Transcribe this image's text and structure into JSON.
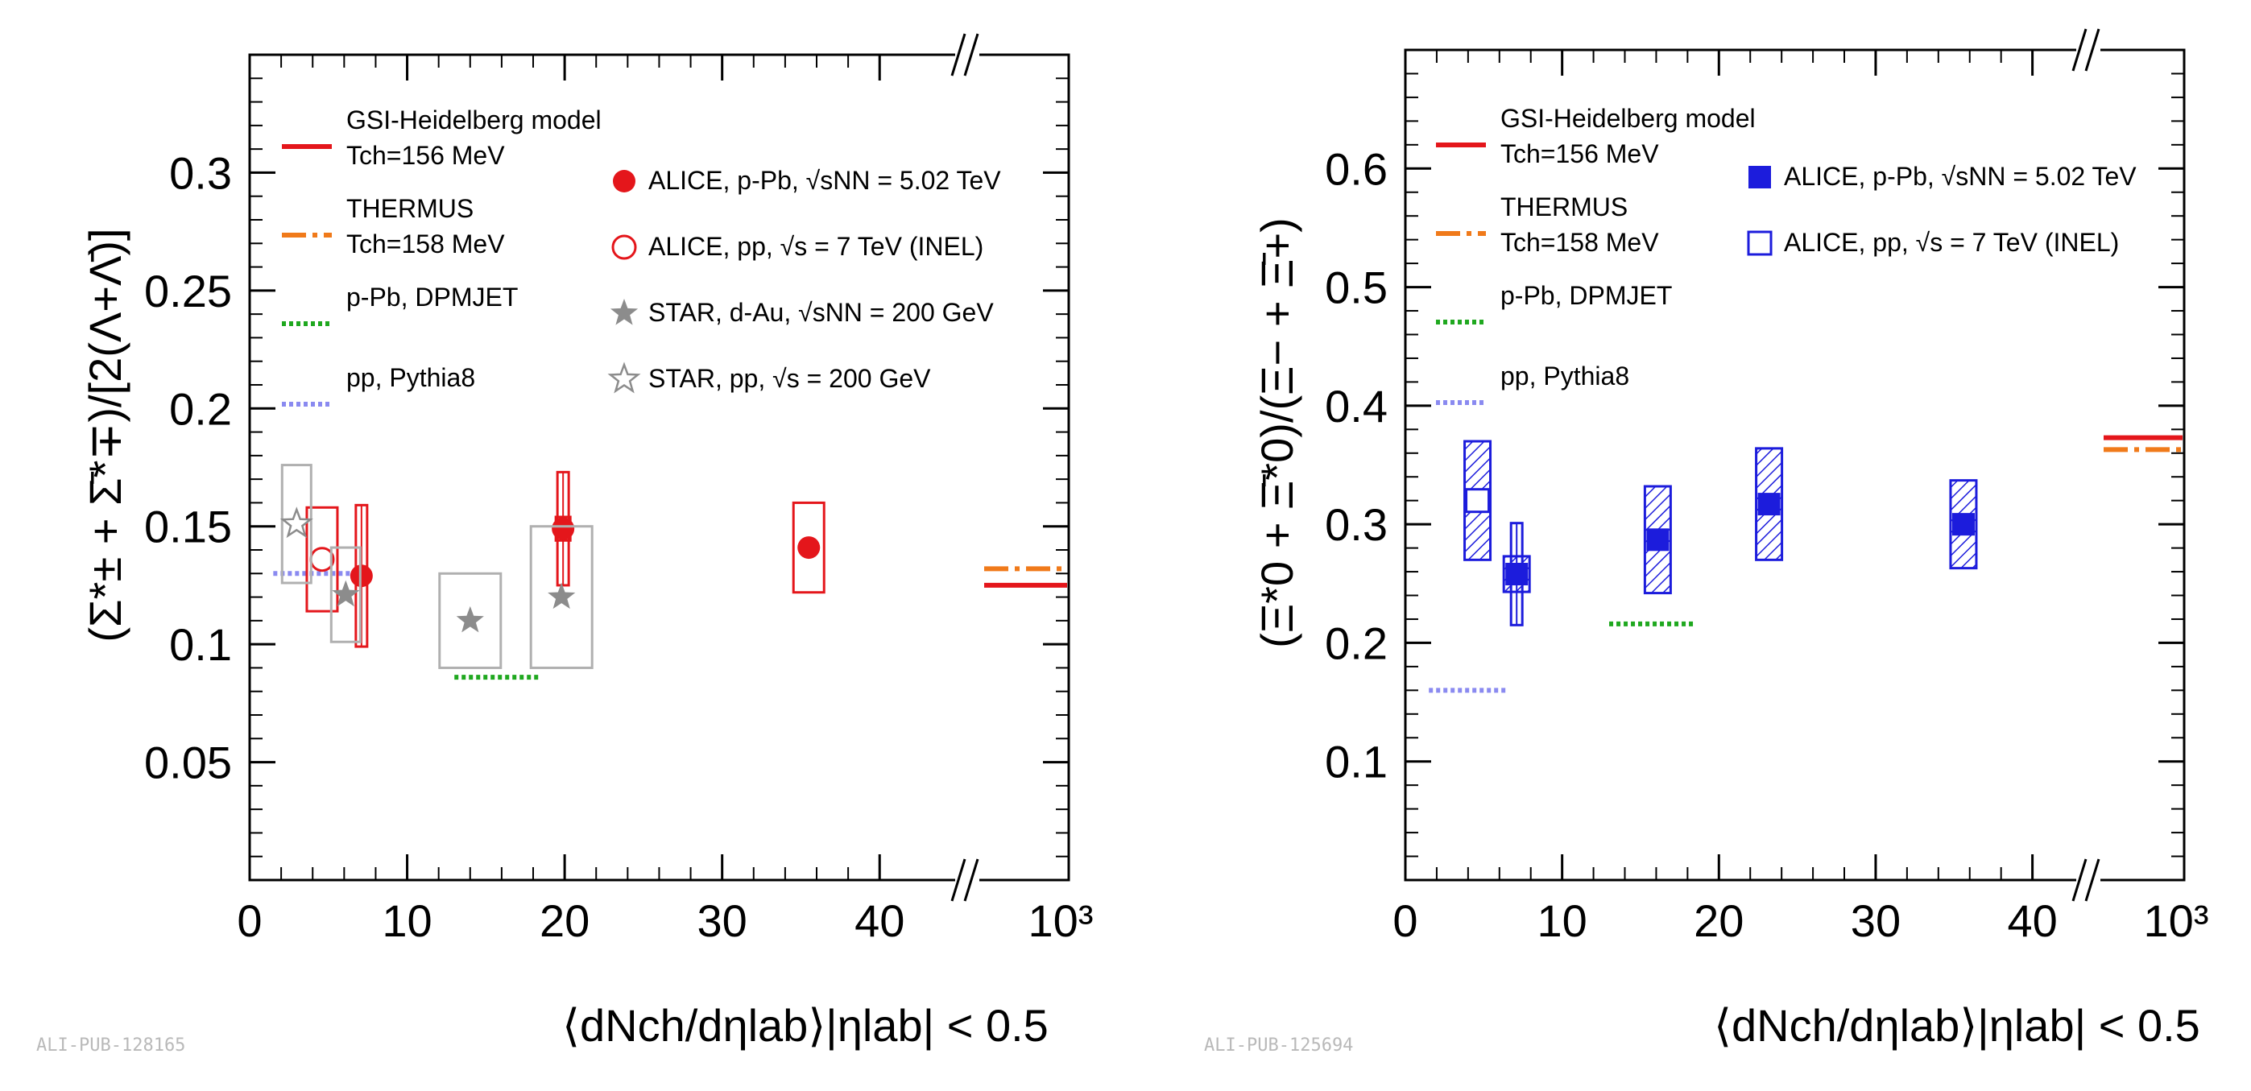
{
  "chart_data": [
    {
      "type": "scatter",
      "title": "",
      "ylabel": "(Σ*± + Σ̄*∓)/[2(Λ+Λ̄)]",
      "xlabel": "⟨dNch/dηlab⟩|ηlab| < 0.5",
      "xlim": [
        0,
        45
      ],
      "ylim": [
        0,
        0.35
      ],
      "xticks": [
        0,
        10,
        20,
        30,
        40
      ],
      "xtick_labels": [
        "0",
        "10",
        "20",
        "30",
        "40"
      ],
      "x_break_label": "10³",
      "yticks": [
        0.05,
        0.1,
        0.15,
        0.2,
        0.25,
        0.3
      ],
      "ytick_labels": [
        "0.05",
        "0.1",
        "0.15",
        "0.2",
        "0.25",
        "0.3"
      ],
      "watermark": "ALI-PUB-128165",
      "legend_models": [
        {
          "label": "GSI-Heidelberg model",
          "sub": "Tch=156 MeV",
          "color": "#e4161b",
          "style": "solid"
        },
        {
          "label": "THERMUS",
          "sub": "Tch=158 MeV",
          "color": "#f07a1a",
          "style": "dashdot"
        },
        {
          "label": "p-Pb, DPMJET",
          "sub": "",
          "color": "#1fa81f",
          "style": "dotted"
        },
        {
          "label": "pp, Pythia8",
          "sub": "",
          "color": "#8a8af0",
          "style": "dotted"
        }
      ],
      "legend_data": [
        {
          "label": "ALICE, p-Pb, √sNN = 5.02 TeV",
          "marker": "circle-filled",
          "color": "#e4161b"
        },
        {
          "label": "ALICE, pp, √s = 7 TeV (INEL)",
          "marker": "circle-open",
          "color": "#e4161b"
        },
        {
          "label": "STAR, d-Au, √sNN = 200 GeV",
          "marker": "star-filled",
          "color": "#8c8c8c"
        },
        {
          "label": "STAR, pp, √s = 200 GeV",
          "marker": "star-open",
          "color": "#8c8c8c"
        }
      ],
      "series": [
        {
          "name": "ALICE, p-Pb, √sNN = 5.02 TeV",
          "marker": "circle-filled",
          "color": "#e4161b",
          "points": [
            {
              "x": 7.1,
              "y": 0.129,
              "stat": 0.03,
              "sys": 0.0
            },
            {
              "x": 19.9,
              "y": 0.149,
              "stat": 0.024,
              "sys": 0.005
            },
            {
              "x": 35.5,
              "y": 0.141,
              "stat": 0.0,
              "sys": 0.019
            }
          ]
        },
        {
          "name": "ALICE, pp, √s = 7 TeV (INEL)",
          "marker": "circle-open",
          "color": "#e4161b",
          "points": [
            {
              "x": 4.6,
              "y": 0.136,
              "stat": 0.0,
              "sys": 0.022
            }
          ]
        },
        {
          "name": "STAR, d-Au, √sNN = 200 GeV",
          "marker": "star-filled",
          "color": "#8c8c8c",
          "points": [
            {
              "x": 6.1,
              "y": 0.121,
              "stat": 0.0,
              "sys": 0.02
            },
            {
              "x": 14.0,
              "y": 0.11,
              "stat": 0.0,
              "sys": 0.02
            },
            {
              "x": 19.8,
              "y": 0.12,
              "stat": 0.0,
              "sys": 0.03
            }
          ]
        },
        {
          "name": "STAR, pp, √s = 200 GeV",
          "marker": "star-open",
          "color": "#8c8c8c",
          "points": [
            {
              "x": 2.98,
              "y": 0.151,
              "stat": 0.0,
              "sys": 0.025
            }
          ]
        }
      ],
      "model_lines": [
        {
          "name": "pp, Pythia8",
          "x0": 1.5,
          "x1": 6.5,
          "y": 0.13,
          "color": "#8a8af0",
          "style": "dotted"
        },
        {
          "name": "p-Pb, DPMJET",
          "x0": 13.0,
          "x1": 18.5,
          "y": 0.086,
          "color": "#1fa81f",
          "style": "dotted"
        },
        {
          "name": "GSI-Heidelberg at 10³",
          "y": 0.125,
          "color": "#e4161b",
          "style": "solid"
        },
        {
          "name": "THERMUS at 10³",
          "y": 0.132,
          "color": "#f07a1a",
          "style": "dashdot"
        }
      ]
    },
    {
      "type": "scatter",
      "title": "",
      "ylabel": "(Ξ*0 + Ξ̄*0)/(Ξ− + Ξ̄+)",
      "xlabel": "⟨dNch/dηlab⟩|ηlab| < 0.5",
      "xlim": [
        0,
        43
      ],
      "ylim": [
        0,
        0.7
      ],
      "xticks": [
        0,
        10,
        20,
        30,
        40
      ],
      "xtick_labels": [
        "0",
        "10",
        "20",
        "30",
        "40"
      ],
      "x_break_label": "10³",
      "yticks": [
        0.1,
        0.2,
        0.3,
        0.4,
        0.5,
        0.6
      ],
      "ytick_labels": [
        "0.1",
        "0.2",
        "0.3",
        "0.4",
        "0.5",
        "0.6"
      ],
      "watermark": "ALI-PUB-125694",
      "legend_models": [
        {
          "label": "GSI-Heidelberg model",
          "sub": "Tch=156 MeV",
          "color": "#e4161b",
          "style": "solid"
        },
        {
          "label": "THERMUS",
          "sub": "Tch=158 MeV",
          "color": "#f07a1a",
          "style": "dashdot"
        },
        {
          "label": "p-Pb, DPMJET",
          "sub": "",
          "color": "#1fa81f",
          "style": "dotted"
        },
        {
          "label": "pp, Pythia8",
          "sub": "",
          "color": "#8a8af0",
          "style": "dotted"
        }
      ],
      "legend_data": [
        {
          "label": "ALICE, p-Pb, √sNN = 5.02 TeV",
          "marker": "square-filled",
          "color": "#1c1cdc"
        },
        {
          "label": "ALICE, pp, √s = 7 TeV (INEL)",
          "marker": "square-open",
          "color": "#1c1cdc"
        }
      ],
      "series": [
        {
          "name": "ALICE, p-Pb, √sNN = 5.02 TeV",
          "marker": "square-filled",
          "color": "#1c1cdc",
          "points": [
            {
              "x": 7.1,
              "y": 0.258,
              "stat": 0.043,
              "sys": 0.015
            },
            {
              "x": 16.1,
              "y": 0.287,
              "stat": 0.0,
              "sys": 0.045
            },
            {
              "x": 23.2,
              "y": 0.317,
              "stat": 0.0,
              "sys": 0.047
            },
            {
              "x": 35.6,
              "y": 0.3,
              "stat": 0.0,
              "sys": 0.037
            }
          ]
        },
        {
          "name": "ALICE, pp, √s = 7 TeV (INEL)",
          "marker": "square-open",
          "color": "#1c1cdc",
          "points": [
            {
              "x": 4.6,
              "y": 0.32,
              "stat": 0.0,
              "sys": 0.05
            }
          ]
        }
      ],
      "model_lines": [
        {
          "name": "pp, Pythia8",
          "x0": 1.5,
          "x1": 6.5,
          "y": 0.16,
          "color": "#8a8af0",
          "style": "dotted"
        },
        {
          "name": "p-Pb, DPMJET",
          "x0": 13.0,
          "x1": 18.5,
          "y": 0.216,
          "color": "#1fa81f",
          "style": "dotted"
        },
        {
          "name": "GSI-Heidelberg at 10³",
          "y": 0.373,
          "color": "#e4161b",
          "style": "solid"
        },
        {
          "name": "THERMUS at 10³",
          "y": 0.363,
          "color": "#f07a1a",
          "style": "dashdot"
        }
      ]
    }
  ]
}
